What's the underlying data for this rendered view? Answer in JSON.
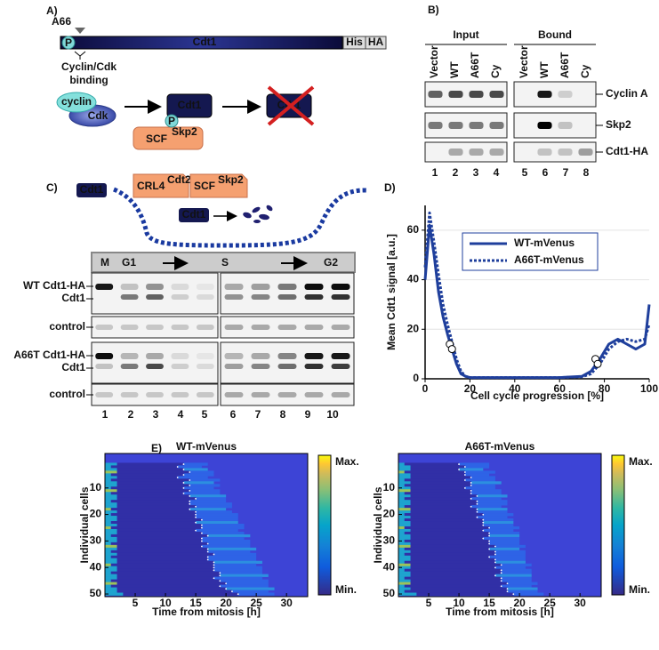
{
  "panel_a": {
    "label": "A)",
    "site": "A66",
    "protein": "Cdt1",
    "tags": [
      "His",
      "HA"
    ],
    "site_note": [
      "Cyclin/Cdk",
      "binding"
    ],
    "cyclin": "cyclin",
    "cdk": "Cdk",
    "phospho": "P",
    "cdt1": "Cdt1",
    "scf": {
      "base": "SCF",
      "sup": "Skp2"
    },
    "degraded": "Cdt1"
  },
  "panel_b": {
    "label": "B)",
    "groups": [
      "Input",
      "Bound"
    ],
    "lanes": [
      "Vector",
      "WT",
      "A66T",
      "Cy",
      "Vector",
      "WT",
      "A66T",
      "Cy"
    ],
    "rows": [
      "Cyclin A",
      "Skp2",
      "Cdt1-HA"
    ],
    "numbers": [
      "1",
      "2",
      "3",
      "4",
      "5",
      "6",
      "7",
      "8"
    ]
  },
  "panel_c": {
    "label": "C)",
    "cdt1": "Cdt1",
    "crl4": {
      "base": "CRL4",
      "sup": "Cdt2"
    },
    "scf": {
      "base": "SCF",
      "sup": "Skp2"
    },
    "phases": [
      "M",
      "G1",
      "S",
      "G2"
    ],
    "rows": [
      "WT Cdt1-HA",
      "Cdt1",
      "control",
      "A66T Cdt1-HA",
      "Cdt1",
      "control"
    ],
    "numbers": [
      "1",
      "2",
      "3",
      "4",
      "5",
      "6",
      "7",
      "8",
      "9",
      "10"
    ]
  },
  "panel_e": {
    "label": "E)"
  },
  "chart_data": [
    {
      "type": "line",
      "panel": "D)",
      "xlabel": "Cell cycle progression [%]",
      "ylabel": "Mean Cdt1 signal [a.u.]",
      "xlim": [
        0,
        100
      ],
      "ylim": [
        0,
        70
      ],
      "xticks": [
        0,
        20,
        40,
        60,
        80,
        100
      ],
      "yticks": [
        0,
        20,
        40,
        60
      ],
      "grid": true,
      "x": [
        0,
        2,
        4,
        6,
        8,
        10,
        12,
        14,
        16,
        18,
        20,
        30,
        40,
        50,
        60,
        70,
        74,
        78,
        82,
        86,
        90,
        94,
        98,
        100
      ],
      "series": [
        {
          "name": "WT-mVenus",
          "color": "#1f3f9c",
          "linestyle": "solid",
          "values": [
            40,
            62,
            50,
            35,
            25,
            18,
            12,
            6,
            2,
            1,
            0.5,
            0.5,
            0.5,
            0.5,
            0.5,
            1,
            3,
            8,
            14,
            16,
            14,
            12,
            14,
            30
          ]
        },
        {
          "name": "A66T-mVenus",
          "color": "#1f3f9c",
          "linestyle": "dotted",
          "values": [
            45,
            67,
            55,
            42,
            30,
            22,
            15,
            8,
            3,
            1,
            0.5,
            0.5,
            0.5,
            0.5,
            0.5,
            0.8,
            2,
            6,
            12,
            15,
            16,
            15,
            16,
            22
          ]
        }
      ],
      "circles": {
        "x": [
          11,
          12,
          76,
          77
        ],
        "y": [
          14,
          12,
          8,
          6
        ]
      }
    },
    {
      "type": "heatmap",
      "title": "WT-mVenus",
      "xlabel": "Time from mitosis [h]",
      "ylabel": "Individual cells",
      "xlim": [
        0,
        33.5
      ],
      "ylim": [
        -3,
        51
      ],
      "xticks": [
        5,
        10,
        15,
        20,
        25,
        30
      ],
      "yticks": [
        10,
        20,
        30,
        40,
        50
      ],
      "colorbar": [
        "Max.",
        "Min."
      ],
      "drop": [
        2,
        1,
        2,
        2,
        1,
        2,
        1,
        2,
        2,
        1,
        2,
        1,
        2,
        2,
        1,
        2,
        2,
        1,
        2,
        1,
        2,
        2,
        1,
        2,
        1,
        2,
        2,
        1,
        2,
        2,
        1,
        2,
        2,
        1,
        2,
        1,
        2,
        2,
        1,
        2,
        2,
        1,
        2,
        2,
        1,
        2,
        1,
        2,
        2,
        3
      ],
      "rise": [
        13,
        12,
        13,
        14,
        13,
        12,
        14,
        13,
        14,
        13,
        14,
        13,
        14,
        15,
        14,
        14,
        15,
        14,
        15,
        15,
        15,
        16,
        15,
        16,
        16,
        15,
        16,
        17,
        16,
        16,
        17,
        16,
        17,
        17,
        18,
        17,
        17,
        18,
        18,
        18,
        18,
        19,
        19,
        18,
        19,
        20,
        19,
        20,
        21,
        22
      ],
      "end": [
        17,
        16,
        17,
        18,
        18,
        17,
        19,
        18,
        19,
        18,
        19,
        19,
        20,
        20,
        20,
        21,
        21,
        20,
        21,
        22,
        22,
        22,
        22,
        23,
        23,
        22,
        23,
        24,
        23,
        24,
        24,
        24,
        25,
        24,
        25,
        25,
        25,
        26,
        25,
        26,
        26,
        26,
        27,
        26,
        27,
        27,
        27,
        28,
        27,
        28
      ]
    },
    {
      "type": "heatmap",
      "title": "A66T-mVenus",
      "xlabel": "Time from mitosis [h]",
      "ylabel": "Individual cells",
      "xlim": [
        0,
        33.5
      ],
      "ylim": [
        -3,
        51
      ],
      "xticks": [
        5,
        10,
        15,
        20,
        25,
        30
      ],
      "yticks": [
        10,
        20,
        30,
        40,
        50
      ],
      "colorbar": [
        "Max.",
        "Min."
      ],
      "drop": [
        1,
        2,
        2,
        1,
        2,
        2,
        1,
        2,
        1,
        2,
        2,
        1,
        2,
        1,
        2,
        2,
        1,
        2,
        2,
        1,
        2,
        1,
        2,
        2,
        1,
        2,
        1,
        2,
        2,
        1,
        2,
        2,
        1,
        2,
        1,
        2,
        2,
        1,
        2,
        2,
        1,
        2,
        2,
        1,
        2,
        2,
        1,
        2,
        1,
        3
      ],
      "rise": [
        10,
        11,
        10,
        11,
        11,
        12,
        11,
        12,
        12,
        11,
        12,
        12,
        13,
        12,
        13,
        13,
        12,
        13,
        13,
        14,
        13,
        14,
        14,
        14,
        15,
        14,
        15,
        15,
        14,
        15,
        15,
        16,
        15,
        16,
        16,
        15,
        16,
        16,
        17,
        16,
        17,
        17,
        16,
        17,
        17,
        18,
        17,
        18,
        18,
        19
      ],
      "end": [
        15,
        15,
        14,
        16,
        15,
        16,
        16,
        17,
        16,
        16,
        17,
        17,
        18,
        17,
        18,
        18,
        17,
        18,
        18,
        19,
        18,
        19,
        19,
        19,
        20,
        19,
        20,
        20,
        20,
        20,
        20,
        21,
        20,
        21,
        21,
        21,
        21,
        21,
        22,
        21,
        22,
        22,
        22,
        22,
        22,
        23,
        22,
        23,
        23,
        24
      ]
    }
  ]
}
